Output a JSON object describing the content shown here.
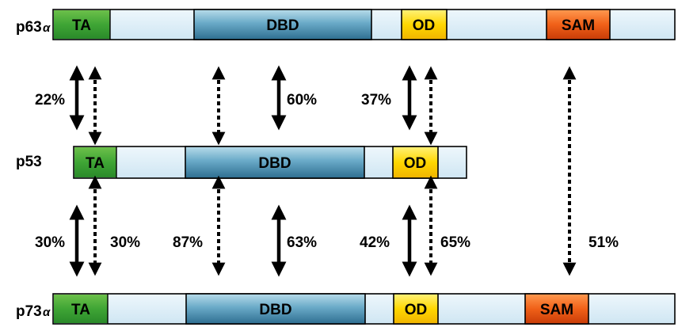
{
  "proteins": [
    {
      "id": "p63",
      "name": "p63",
      "suffix": "α",
      "domains": [
        {
          "label": "TA",
          "color": "#3fa535"
        },
        {
          "label": "DBD",
          "color": "#5b9bb8"
        },
        {
          "label": "OD",
          "color": "#ffd700"
        },
        {
          "label": "SAM",
          "color": "#f06018"
        }
      ]
    },
    {
      "id": "p53",
      "name": "p53",
      "suffix": "",
      "domains": [
        {
          "label": "TA",
          "color": "#3fa535"
        },
        {
          "label": "DBD",
          "color": "#5b9bb8"
        },
        {
          "label": "OD",
          "color": "#ffd700"
        }
      ]
    },
    {
      "id": "p73",
      "name": "p73",
      "suffix": "α",
      "domains": [
        {
          "label": "TA",
          "color": "#3fa535"
        },
        {
          "label": "DBD",
          "color": "#5b9bb8"
        },
        {
          "label": "OD",
          "color": "#ffd700"
        },
        {
          "label": "SAM",
          "color": "#f06018"
        }
      ]
    }
  ],
  "backbone_color": "#ddeef8",
  "identities": {
    "p63_p53": {
      "TA_solid": "22%",
      "DBD_solid": "60%",
      "OD_solid": "37%"
    },
    "p53_p73": {
      "TA_solid": "30%",
      "TA_dotted": "30%",
      "DBD_dotted": "87%",
      "DBD_solid": "63%",
      "OD_solid": "42%",
      "OD_dotted": "65%"
    },
    "p63_p73": {
      "SAM_dotted": "51%"
    }
  }
}
